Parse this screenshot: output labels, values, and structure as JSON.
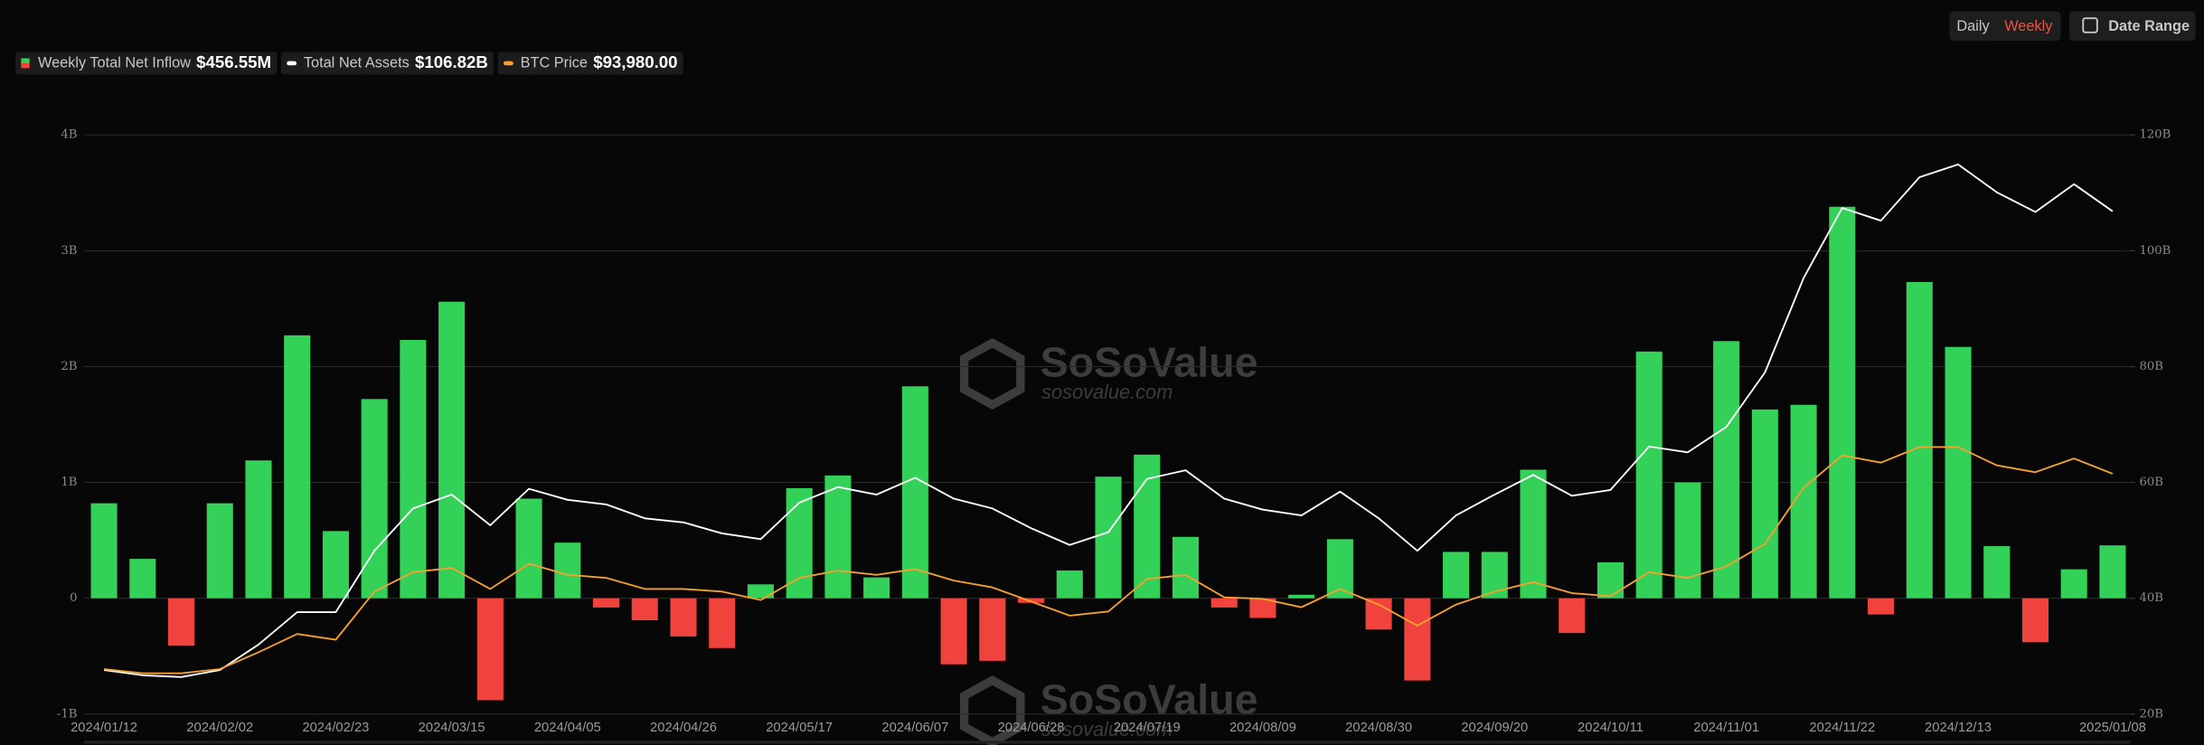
{
  "controls": {
    "daily": "Daily",
    "weekly": "Weekly",
    "date_range": "Date Range"
  },
  "watermark": {
    "name": "SoSoValue",
    "url": "sosovalue.com"
  },
  "chart_data": {
    "type": "bar",
    "categories": [
      "2024/01/12",
      null,
      null,
      "2024/02/02",
      null,
      null,
      "2024/02/23",
      null,
      null,
      "2024/03/15",
      null,
      null,
      "2024/04/05",
      null,
      null,
      "2024/04/26",
      null,
      null,
      "2024/05/17",
      null,
      null,
      "2024/06/07",
      null,
      null,
      "2024/06/28",
      null,
      null,
      "2024/07/19",
      null,
      null,
      "2024/08/09",
      null,
      null,
      "2024/08/30",
      null,
      null,
      "2024/09/20",
      null,
      null,
      "2024/10/11",
      null,
      null,
      "2024/11/01",
      null,
      null,
      "2024/11/22",
      null,
      null,
      "2024/12/13",
      null,
      null,
      null,
      "2025/01/08"
    ],
    "ylim": [
      -1,
      4
    ],
    "yticks": [
      {
        "value": -1,
        "label": "-1B"
      },
      0,
      {
        "value": 1,
        "label": "1B"
      },
      {
        "value": 2,
        "label": "2B"
      },
      {
        "value": 3,
        "label": "3B"
      },
      {
        "value": 4,
        "label": "4B"
      }
    ],
    "y2lim": [
      20,
      120
    ],
    "y2ticks": [
      {
        "value": 20,
        "label": "20B"
      },
      {
        "value": 40,
        "label": "40B"
      },
      {
        "value": 60,
        "label": "60B"
      },
      {
        "value": 80,
        "label": "80B"
      },
      {
        "value": 100,
        "label": "100B"
      },
      {
        "value": 120,
        "label": "120B"
      }
    ],
    "y3lim": [
      31000,
      182800
    ],
    "grid": true,
    "series": [
      {
        "name": "Weekly Total Net Inflow",
        "type": "bar",
        "latest": "$456.55M",
        "color": "#33d158",
        "negative_color": "#f0433d",
        "values": [
          0.82,
          0.34,
          -0.41,
          0.82,
          1.19,
          2.27,
          0.58,
          1.72,
          2.23,
          2.56,
          -0.88,
          0.86,
          0.48,
          -0.08,
          -0.19,
          -0.33,
          -0.43,
          0.12,
          0.95,
          1.06,
          0.18,
          1.83,
          -0.57,
          -0.54,
          -0.04,
          0.24,
          1.05,
          1.24,
          0.53,
          -0.08,
          -0.17,
          0.03,
          0.51,
          -0.27,
          -0.71,
          0.4,
          0.4,
          1.11,
          -0.3,
          0.31,
          2.13,
          1.0,
          2.22,
          1.63,
          1.67,
          3.38,
          -0.14,
          2.73,
          2.17,
          0.45,
          -0.38,
          0.25,
          0.45655
        ]
      },
      {
        "name": "Total Net Assets",
        "type": "line",
        "axis": "y2",
        "latest": "$106.82B",
        "color": "#ffffff",
        "values": [
          27.6,
          26.7,
          26.4,
          27.6,
          32.0,
          37.6,
          37.6,
          48.2,
          55.5,
          57.9,
          52.6,
          58.9,
          57.0,
          56.2,
          53.8,
          53.1,
          51.2,
          50.2,
          56.5,
          59.2,
          57.9,
          60.8,
          57.2,
          55.5,
          52.1,
          49.2,
          51.4,
          60.6,
          62.1,
          57.2,
          55.3,
          54.3,
          58.4,
          53.8,
          48.2,
          54.3,
          57.9,
          61.3,
          57.7,
          58.7,
          66.2,
          65.2,
          69.6,
          79.0,
          95.3,
          107.4,
          105.2,
          112.7,
          114.9,
          110.1,
          106.7,
          111.5,
          106.82
        ]
      },
      {
        "name": "BTC Price",
        "type": "line",
        "axis": "y3",
        "latest": "$93,980.00",
        "color": "#f5a031",
        "values": [
          42800,
          41700,
          41700,
          42800,
          47200,
          52000,
          50500,
          63100,
          68200,
          69300,
          63800,
          70400,
          67500,
          66700,
          63800,
          63800,
          63100,
          60900,
          66700,
          68600,
          67500,
          69000,
          66000,
          64200,
          60500,
          56800,
          57900,
          66400,
          67500,
          61600,
          61200,
          59000,
          63800,
          59700,
          54200,
          59700,
          63100,
          65600,
          62700,
          61900,
          68200,
          66700,
          69700,
          75600,
          90300,
          98800,
          96900,
          101000,
          101000,
          96200,
          94400,
          98000,
          93980
        ]
      }
    ]
  }
}
